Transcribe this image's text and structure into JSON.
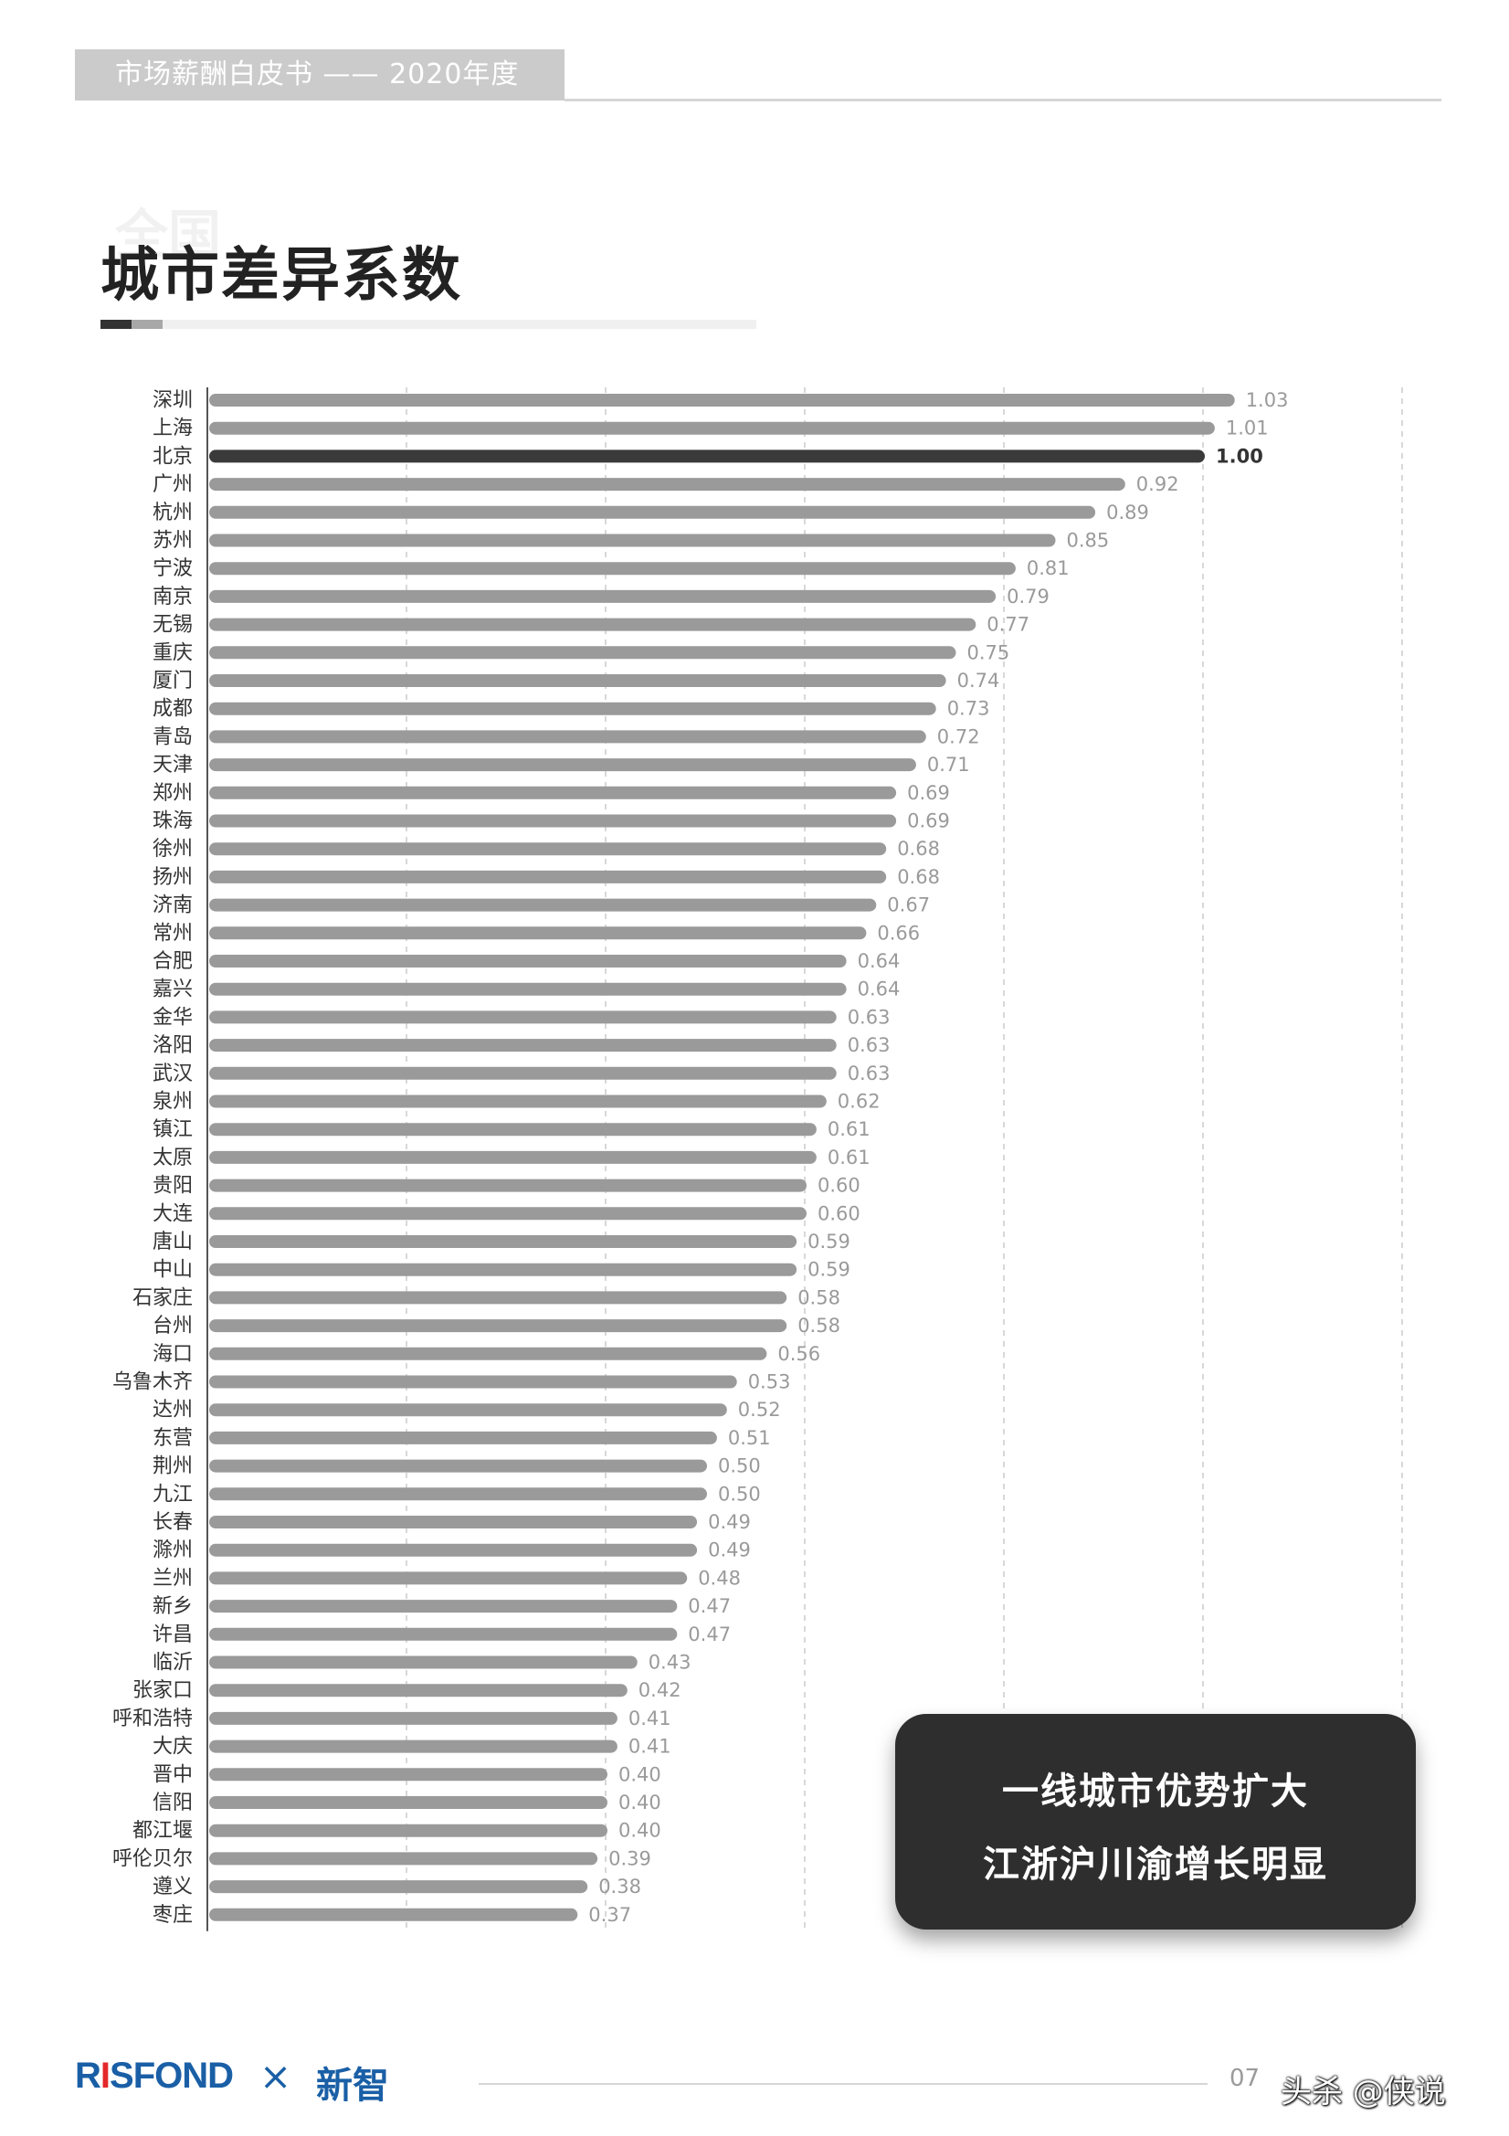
{
  "header": {
    "title": "市场薪酬白皮书 —— 2020年度"
  },
  "page_title": {
    "ghost": "全国",
    "main": "城市差异系数"
  },
  "callout": {
    "line1": "一线城市优势扩大",
    "line2": "江浙沪川渝增长明显"
  },
  "footer": {
    "logo_left_prefix": "R",
    "logo_left_dot": "I",
    "logo_left_rest": "SFOND",
    "times": "×",
    "logo_right": "新智",
    "page_number": "07",
    "watermark": "头杀 @侠说"
  },
  "colors": {
    "bar": "#9a9a9a",
    "highlight_bar": "#3a3a3a",
    "value": "#9a9a9a",
    "highlight_value": "#333333"
  },
  "chart_data": {
    "type": "bar",
    "orientation": "horizontal",
    "title": "城市差异系数",
    "highlight": "北京",
    "xlim": [
      0,
      1.2
    ],
    "grid": "vertical dashed",
    "categories": [
      "深圳",
      "上海",
      "北京",
      "广州",
      "杭州",
      "苏州",
      "宁波",
      "南京",
      "无锡",
      "重庆",
      "厦门",
      "成都",
      "青岛",
      "天津",
      "郑州",
      "珠海",
      "徐州",
      "扬州",
      "济南",
      "常州",
      "合肥",
      "嘉兴",
      "金华",
      "洛阳",
      "武汉",
      "泉州",
      "镇江",
      "太原",
      "贵阳",
      "大连",
      "唐山",
      "中山",
      "石家庄",
      "台州",
      "海口",
      "乌鲁木齐",
      "达州",
      "东营",
      "荆州",
      "九江",
      "长春",
      "滁州",
      "兰州",
      "新乡",
      "许昌",
      "临沂",
      "张家口",
      "呼和浩特",
      "大庆",
      "晋中",
      "信阳",
      "都江堰",
      "呼伦贝尔",
      "遵义",
      "枣庄"
    ],
    "values": [
      1.03,
      1.01,
      1.0,
      0.92,
      0.89,
      0.85,
      0.81,
      0.79,
      0.77,
      0.75,
      0.74,
      0.73,
      0.72,
      0.71,
      0.69,
      0.69,
      0.68,
      0.68,
      0.67,
      0.66,
      0.64,
      0.64,
      0.63,
      0.63,
      0.63,
      0.62,
      0.61,
      0.61,
      0.6,
      0.6,
      0.59,
      0.59,
      0.58,
      0.58,
      0.56,
      0.53,
      0.52,
      0.51,
      0.5,
      0.5,
      0.49,
      0.49,
      0.48,
      0.47,
      0.47,
      0.43,
      0.42,
      0.41,
      0.41,
      0.4,
      0.4,
      0.4,
      0.39,
      0.38,
      0.37
    ],
    "value_labels": [
      "1.03",
      "1.01",
      "1.00",
      "0.92",
      "0.89",
      "0.85",
      "0.81",
      "0.79",
      "0.77",
      "0.75",
      "0.74",
      "0.73",
      "0.72",
      "0.71",
      "0.69",
      "0.69",
      "0.68",
      "0.68",
      "0.67",
      "0.66",
      "0.64",
      "0.64",
      "0.63",
      "0.63",
      "0.63",
      "0.62",
      "0.61",
      "0.61",
      "0.60",
      "0.60",
      "0.59",
      "0.59",
      "0.58",
      "0.58",
      "0.56",
      "0.53",
      "0.52",
      "0.51",
      "0.50",
      "0.50",
      "0.49",
      "0.49",
      "0.48",
      "0.47",
      "0.47",
      "0.43",
      "0.42",
      "0.41",
      "0.41",
      "0.40",
      "0.40",
      "0.40",
      "0.39",
      "0.38",
      "0.37"
    ]
  }
}
